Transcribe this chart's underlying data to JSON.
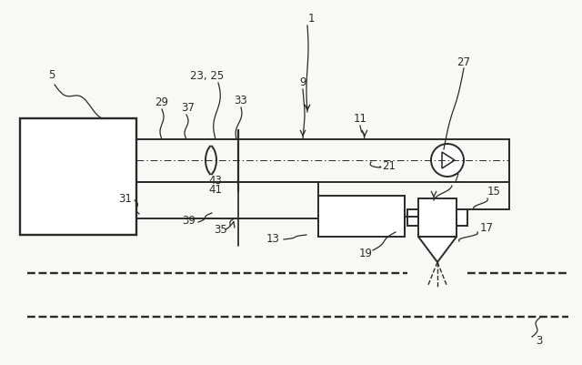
{
  "bg_color": "#f8f8f5",
  "line_color": "#2a2a2a",
  "lw": 1.4,
  "fig_w": 6.4,
  "fig_h": 4.01,
  "dpi": 100
}
